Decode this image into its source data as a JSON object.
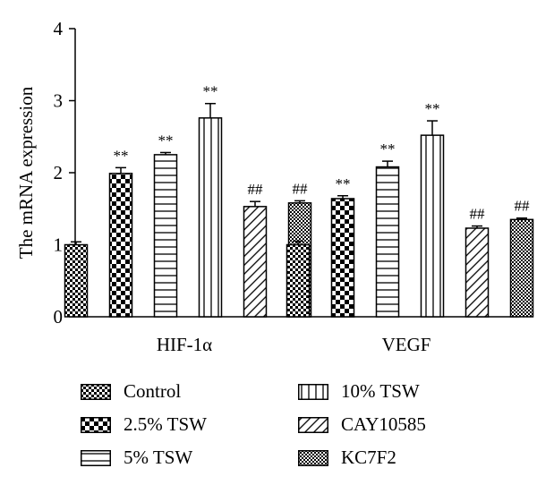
{
  "chart_data": {
    "type": "bar",
    "categories": [
      "HIF-1α",
      "VEGF"
    ],
    "ylabel": "The mRNA expression",
    "ylim": [
      0,
      4
    ],
    "yticks": [
      0,
      1,
      2,
      3,
      4
    ],
    "grid": false,
    "legend_position": "bottom",
    "series": [
      {
        "name": "Control",
        "pattern": "checker-small",
        "values": [
          1.0,
          1.0
        ],
        "errors": [
          0.04,
          0.05
        ],
        "annotations": [
          "",
          ""
        ]
      },
      {
        "name": "2.5% TSW",
        "pattern": "checker-large",
        "values": [
          1.99,
          1.64
        ],
        "errors": [
          0.08,
          0.04
        ],
        "annotations": [
          "**",
          "**"
        ]
      },
      {
        "name": "5% TSW",
        "pattern": "hlines",
        "values": [
          2.25,
          2.08
        ],
        "errors": [
          0.03,
          0.08
        ],
        "annotations": [
          "**",
          "**"
        ]
      },
      {
        "name": "10% TSW",
        "pattern": "vlines",
        "values": [
          2.76,
          2.52
        ],
        "errors": [
          0.2,
          0.2
        ],
        "annotations": [
          "**",
          "**"
        ]
      },
      {
        "name": "CAY10585",
        "pattern": "diagonal",
        "values": [
          1.53,
          1.23
        ],
        "errors": [
          0.07,
          0.03
        ],
        "annotations": [
          "##",
          "##"
        ]
      },
      {
        "name": "KC7F2",
        "pattern": "checker-fine",
        "values": [
          1.58,
          1.35
        ],
        "errors": [
          0.03,
          0.02
        ],
        "annotations": [
          "##",
          "##"
        ]
      }
    ]
  }
}
